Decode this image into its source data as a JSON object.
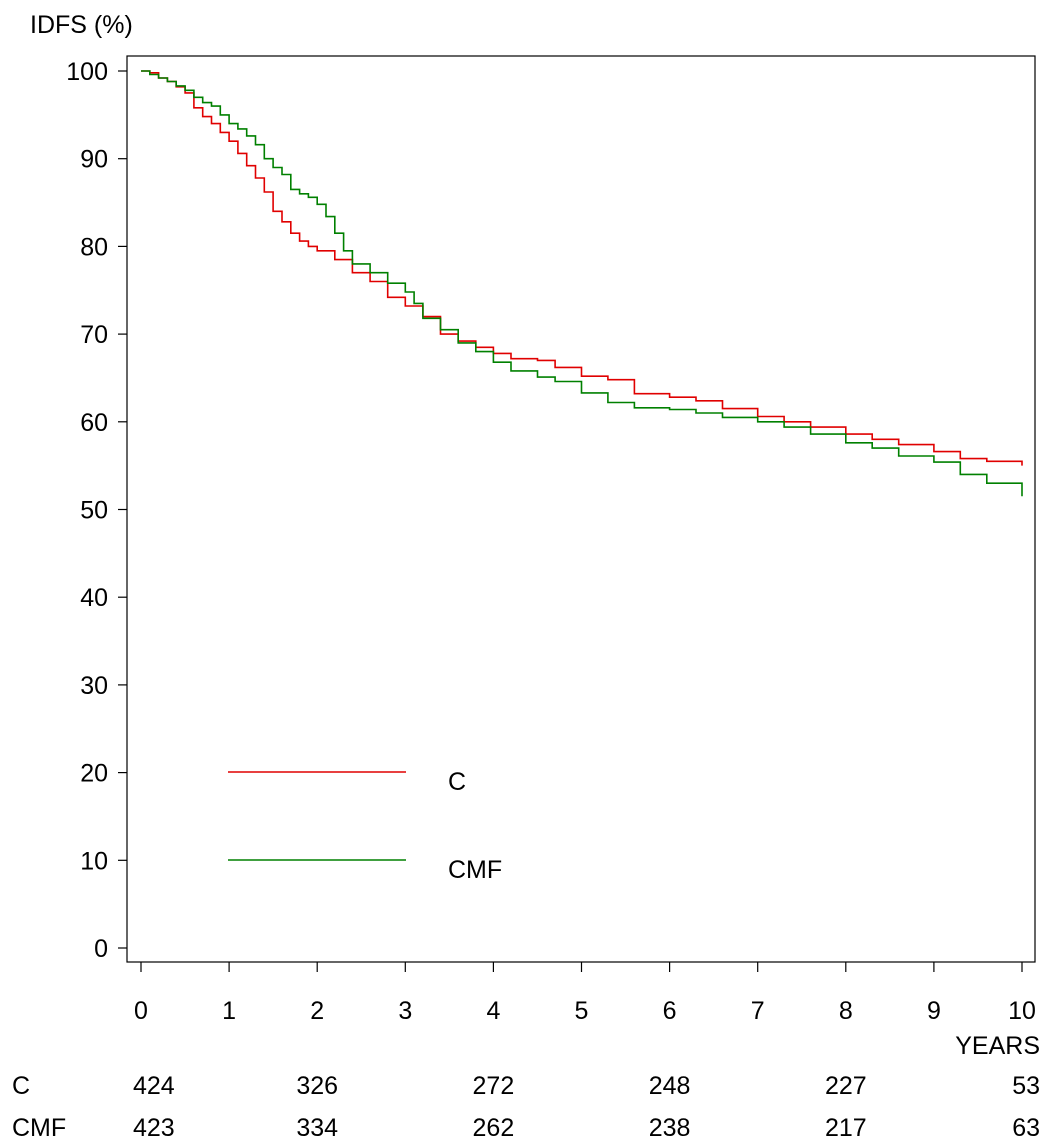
{
  "chart_data": {
    "type": "line",
    "ylabel": "IDFS  (%)",
    "xlabel": "YEARS",
    "xlim": [
      0,
      10
    ],
    "ylim": [
      0,
      100
    ],
    "x_ticks": [
      0,
      1,
      2,
      3,
      4,
      5,
      6,
      7,
      8,
      9,
      10
    ],
    "y_ticks": [
      0,
      10,
      20,
      30,
      40,
      50,
      60,
      70,
      80,
      90,
      100
    ],
    "grid": false,
    "legend_position": "bottom-left",
    "series": [
      {
        "name": "C",
        "color": "#e00000",
        "x": [
          0,
          0.1,
          0.2,
          0.3,
          0.4,
          0.5,
          0.6,
          0.7,
          0.8,
          0.9,
          1.0,
          1.1,
          1.2,
          1.3,
          1.4,
          1.5,
          1.6,
          1.7,
          1.8,
          1.9,
          2.0,
          2.2,
          2.4,
          2.6,
          2.8,
          3.0,
          3.2,
          3.4,
          3.6,
          3.8,
          4.0,
          4.2,
          4.5,
          4.7,
          5.0,
          5.3,
          5.6,
          6.0,
          6.3,
          6.6,
          7.0,
          7.3,
          7.6,
          8.0,
          8.3,
          8.6,
          9.0,
          9.3,
          9.6,
          10.0
        ],
        "y": [
          100,
          99.8,
          99.2,
          98.8,
          98.2,
          97.5,
          95.8,
          94.8,
          94.0,
          93.0,
          92.0,
          90.6,
          89.2,
          87.8,
          86.2,
          84.0,
          82.8,
          81.5,
          80.6,
          80.0,
          79.5,
          78.5,
          77.0,
          76.0,
          74.2,
          73.2,
          72.0,
          70.0,
          69.2,
          68.5,
          67.8,
          67.2,
          67.0,
          66.2,
          65.2,
          64.8,
          63.2,
          62.8,
          62.4,
          61.5,
          60.6,
          60.0,
          59.4,
          58.6,
          58.0,
          57.4,
          56.6,
          55.8,
          55.5,
          55.0
        ]
      },
      {
        "name": "CMF",
        "color": "#008000",
        "x": [
          0,
          0.1,
          0.2,
          0.3,
          0.4,
          0.5,
          0.6,
          0.7,
          0.8,
          0.9,
          1.0,
          1.1,
          1.2,
          1.3,
          1.4,
          1.5,
          1.6,
          1.7,
          1.8,
          1.9,
          2.0,
          2.1,
          2.2,
          2.3,
          2.4,
          2.6,
          2.8,
          3.0,
          3.1,
          3.2,
          3.4,
          3.6,
          3.8,
          4.0,
          4.2,
          4.5,
          4.7,
          5.0,
          5.3,
          5.6,
          6.0,
          6.3,
          6.6,
          7.0,
          7.3,
          7.6,
          8.0,
          8.3,
          8.6,
          9.0,
          9.3,
          9.6,
          10.0
        ],
        "y": [
          100,
          99.6,
          99.2,
          98.8,
          98.3,
          97.8,
          97.0,
          96.4,
          96.0,
          95.0,
          94.0,
          93.4,
          92.6,
          91.6,
          90.0,
          89.0,
          88.2,
          86.5,
          86.0,
          85.6,
          84.8,
          83.4,
          81.5,
          79.5,
          78.0,
          77.0,
          75.8,
          74.8,
          73.5,
          71.8,
          70.5,
          69.0,
          68.0,
          66.8,
          65.8,
          65.1,
          64.6,
          63.3,
          62.2,
          61.6,
          61.4,
          61.0,
          60.5,
          60.0,
          59.4,
          58.6,
          57.6,
          57.0,
          56.1,
          55.4,
          54.0,
          53.0,
          51.5
        ]
      }
    ],
    "risk_table": {
      "times": [
        0,
        2,
        4,
        6,
        8,
        10
      ],
      "rows": [
        {
          "label": "C",
          "values": [
            "424",
            "326",
            "272",
            "248",
            "227",
            "53"
          ]
        },
        {
          "label": "CMF",
          "values": [
            "423",
            "334",
            "262",
            "238",
            "217",
            "63"
          ]
        }
      ]
    }
  }
}
